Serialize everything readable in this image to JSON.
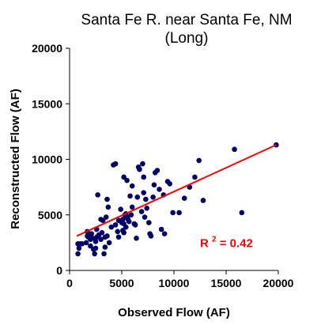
{
  "chart_data": {
    "type": "scatter",
    "title_lines": [
      "Santa Fe R. near Santa Fe, NM",
      "(Long)"
    ],
    "xlabel": "Observed Flow (AF)",
    "ylabel": "Reconstructed Flow (AF)",
    "xlim": [
      0,
      20000
    ],
    "ylim": [
      0,
      20000
    ],
    "x_ticks": [
      0,
      5000,
      10000,
      15000,
      20000
    ],
    "y_ticks": [
      0,
      5000,
      10000,
      15000,
      20000
    ],
    "x_tick_labels": [
      "0",
      "5000",
      "10000",
      "15000",
      "20000"
    ],
    "y_tick_labels": [
      "0",
      "5000",
      "10000",
      "15000",
      "20000"
    ],
    "grid": false,
    "legend": false,
    "point_color": "#000066",
    "trendline_color": "#ff0000",
    "trendline": {
      "x": [
        700,
        19800
      ],
      "y": [
        3100,
        11300
      ]
    },
    "annotation": {
      "prefix": "R",
      "superscript": "2",
      "suffix": " = 0.42",
      "color": "#ff0000",
      "x": 12500,
      "y": 2100
    },
    "points": [
      [
        800,
        1500
      ],
      [
        900,
        2000
      ],
      [
        800,
        2400
      ],
      [
        1000,
        2400
      ],
      [
        1200,
        2400
      ],
      [
        1600,
        2500
      ],
      [
        1700,
        3100
      ],
      [
        1700,
        3500
      ],
      [
        1800,
        3000
      ],
      [
        2000,
        2200
      ],
      [
        2000,
        2800
      ],
      [
        2100,
        3300
      ],
      [
        2200,
        2900
      ],
      [
        2300,
        1900
      ],
      [
        2400,
        1500
      ],
      [
        2500,
        2000
      ],
      [
        2500,
        2600
      ],
      [
        2600,
        3000
      ],
      [
        2600,
        3700
      ],
      [
        2700,
        6800
      ],
      [
        2800,
        3200
      ],
      [
        3000,
        2800
      ],
      [
        3000,
        4600
      ],
      [
        3100,
        3400
      ],
      [
        3200,
        4500
      ],
      [
        3300,
        1500
      ],
      [
        3400,
        2100
      ],
      [
        3400,
        3000
      ],
      [
        3500,
        4800
      ],
      [
        3600,
        3100
      ],
      [
        3600,
        6400
      ],
      [
        3700,
        5700
      ],
      [
        3800,
        2500
      ],
      [
        4000,
        3900
      ],
      [
        4200,
        9500
      ],
      [
        4400,
        9600
      ],
      [
        4400,
        4100
      ],
      [
        4600,
        3500
      ],
      [
        4700,
        4500
      ],
      [
        4700,
        3000
      ],
      [
        4900,
        5500
      ],
      [
        5000,
        4300
      ],
      [
        5100,
        3600
      ],
      [
        5100,
        4600
      ],
      [
        5200,
        8400
      ],
      [
        5200,
        4200
      ],
      [
        5200,
        3400
      ],
      [
        5300,
        5000
      ],
      [
        5400,
        5100
      ],
      [
        5400,
        3900
      ],
      [
        5500,
        8100
      ],
      [
        5500,
        4800
      ],
      [
        5600,
        4600
      ],
      [
        5700,
        4400
      ],
      [
        5800,
        6700
      ],
      [
        5900,
        5000
      ],
      [
        6000,
        7600
      ],
      [
        6000,
        5700
      ],
      [
        6200,
        4200
      ],
      [
        6300,
        4100
      ],
      [
        6400,
        2900
      ],
      [
        6500,
        6600
      ],
      [
        6600,
        9300
      ],
      [
        6700,
        9100
      ],
      [
        6900,
        5300
      ],
      [
        7000,
        9600
      ],
      [
        7100,
        8400
      ],
      [
        7100,
        7000
      ],
      [
        7200,
        4800
      ],
      [
        7300,
        6400
      ],
      [
        7400,
        5600
      ],
      [
        7600,
        4300
      ],
      [
        7700,
        3300
      ],
      [
        7800,
        3100
      ],
      [
        8000,
        6600
      ],
      [
        8100,
        7700
      ],
      [
        8200,
        8800
      ],
      [
        8400,
        9000
      ],
      [
        8600,
        7300
      ],
      [
        8800,
        3700
      ],
      [
        9000,
        6800
      ],
      [
        9100,
        3300
      ],
      [
        9400,
        8000
      ],
      [
        9600,
        7800
      ],
      [
        9900,
        5200
      ],
      [
        10500,
        5200
      ],
      [
        11000,
        6500
      ],
      [
        11500,
        7500
      ],
      [
        12000,
        8400
      ],
      [
        12400,
        9900
      ],
      [
        12800,
        6300
      ],
      [
        15800,
        10900
      ],
      [
        16500,
        5200
      ],
      [
        19800,
        11300
      ]
    ]
  }
}
